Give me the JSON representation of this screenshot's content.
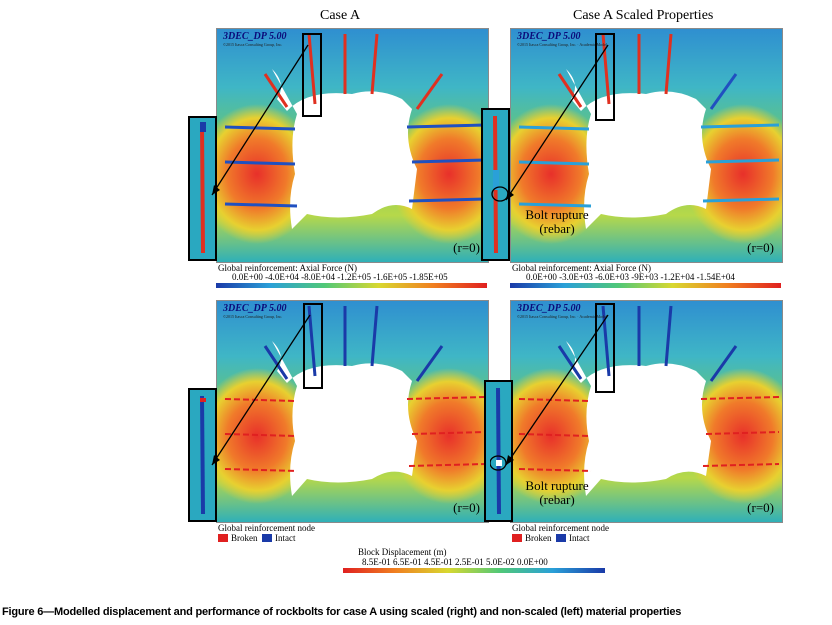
{
  "titles": {
    "left": "Case A",
    "right": "Case A Scaled Properties"
  },
  "panels": {
    "watermark": "3DEC_DP 5.00",
    "watermark_sub_a": "©2015 Itasca Consulting Group, Inc.",
    "watermark_sub_b": "©2015 Itasca Consulting Group, Inc. · Academic Model",
    "r_label": "(r=0)"
  },
  "annotations": {
    "bolt_rupture_1": "Bolt rupture",
    "bolt_rupture_2": "(rebar)"
  },
  "axial_legend_left": {
    "title": "Global reinforcement: Axial Force (N)",
    "ticks": "0.0E+00  -4.0E+04  -8.0E+04  -1.2E+05  -1.6E+05 -1.85E+05"
  },
  "axial_legend_right": {
    "title": "Global reinforcement: Axial Force (N)",
    "ticks": "0.0E+00  -3.0E+03  -6.0E+03    -9E+03    -1.2E+04 -1.54E+04"
  },
  "node_legend": {
    "title": "Global reinforcement node",
    "broken": "Broken",
    "intact": "Intact",
    "broken_color": "#e02020",
    "intact_color": "#1a3aa8"
  },
  "block_legend": {
    "title": "Block Displacement (m)",
    "ticks": "8.5E-01    6.5E-01    4.5E-01    2.5E-01    5.0E-02    0.0E+00"
  },
  "caption": "Figure 6—Modelled displacement and performance of rockbolts for case A using scaled (right) and non-scaled (left) material properties"
}
